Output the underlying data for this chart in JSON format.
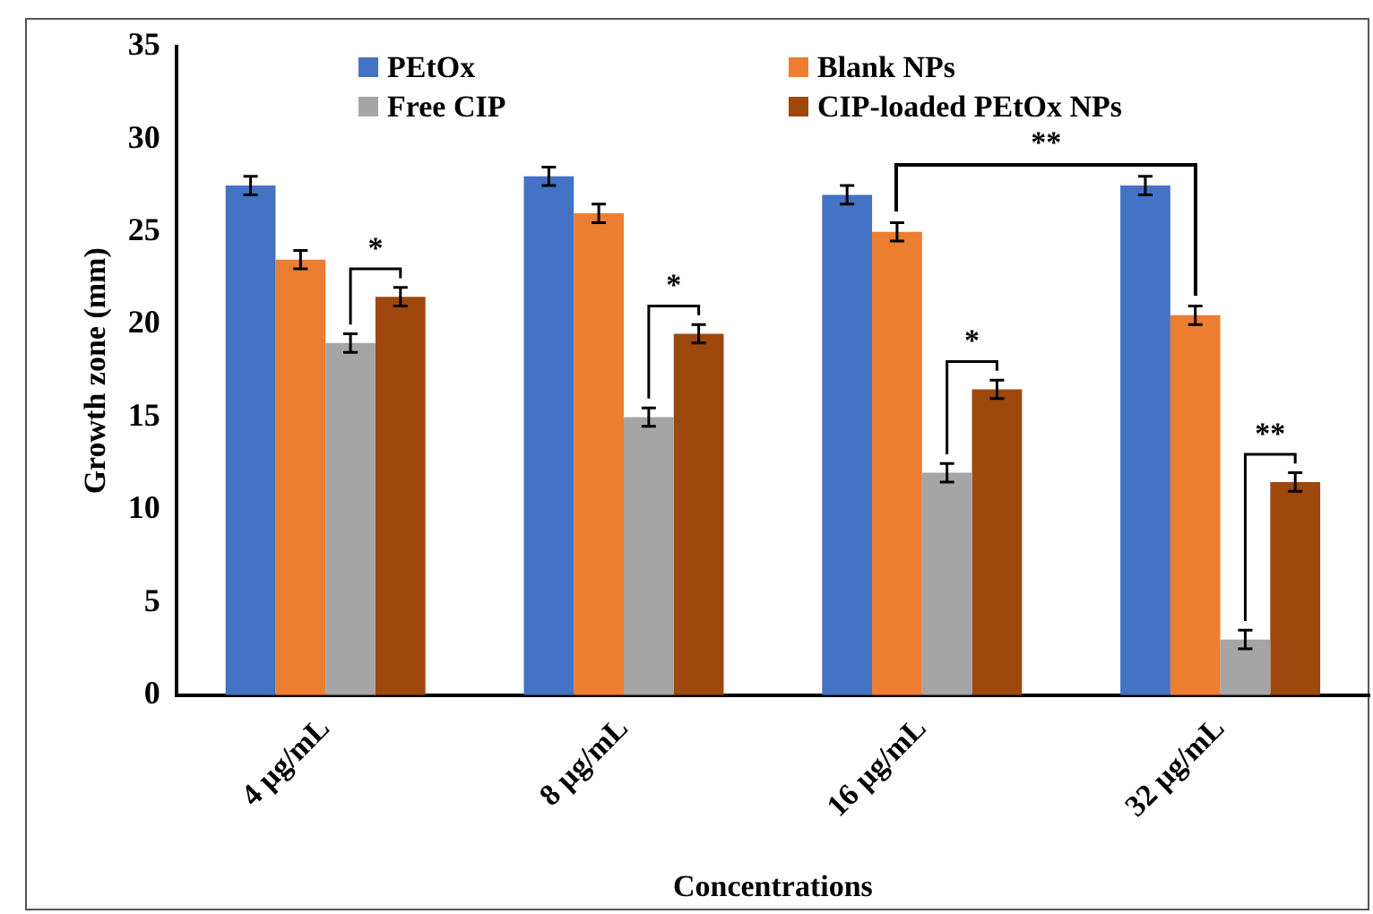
{
  "chart_data": {
    "type": "bar",
    "xlabel": "Concentrations",
    "ylabel": "Growth zone (mm)",
    "categories": [
      "4 µg/mL",
      "8 µg/mL",
      "16 µg/mL",
      "32 µg/mL"
    ],
    "series": [
      {
        "name": "PEtOx",
        "color": "#4472c4",
        "values": [
          27.5,
          28,
          27,
          27.5
        ],
        "errors": [
          0.5,
          0.5,
          0.5,
          0.5
        ]
      },
      {
        "name": "Blank NPs",
        "color": "#ed7d31",
        "values": [
          23.5,
          26,
          25,
          20.5
        ],
        "errors": [
          0.5,
          0.5,
          0.5,
          0.5
        ]
      },
      {
        "name": "Free CIP",
        "color": "#a5a5a5",
        "values": [
          19,
          15,
          12,
          3
        ],
        "errors": [
          0.5,
          0.5,
          0.5,
          0.5
        ]
      },
      {
        "name": "CIP-loaded PEtOx NPs",
        "color": "#9e480e",
        "values": [
          21.5,
          19.5,
          16.5,
          11.5
        ],
        "errors": [
          0.5,
          0.5,
          0.5,
          0.5
        ]
      }
    ],
    "ylim": [
      0,
      35
    ],
    "yticks": [
      0,
      5,
      10,
      15,
      20,
      25,
      30,
      35
    ],
    "grid": false,
    "legend": "top",
    "annotations": [
      {
        "text": "*",
        "x": "4 µg/mL",
        "y": 23
      },
      {
        "text": "*",
        "x": "8 µg/mL",
        "y": 21
      },
      {
        "text": "*",
        "x": "16 µg/mL",
        "y": 18
      },
      {
        "text": "**",
        "x": "32 µg/mL",
        "y": 13
      },
      "**"
    ]
  }
}
